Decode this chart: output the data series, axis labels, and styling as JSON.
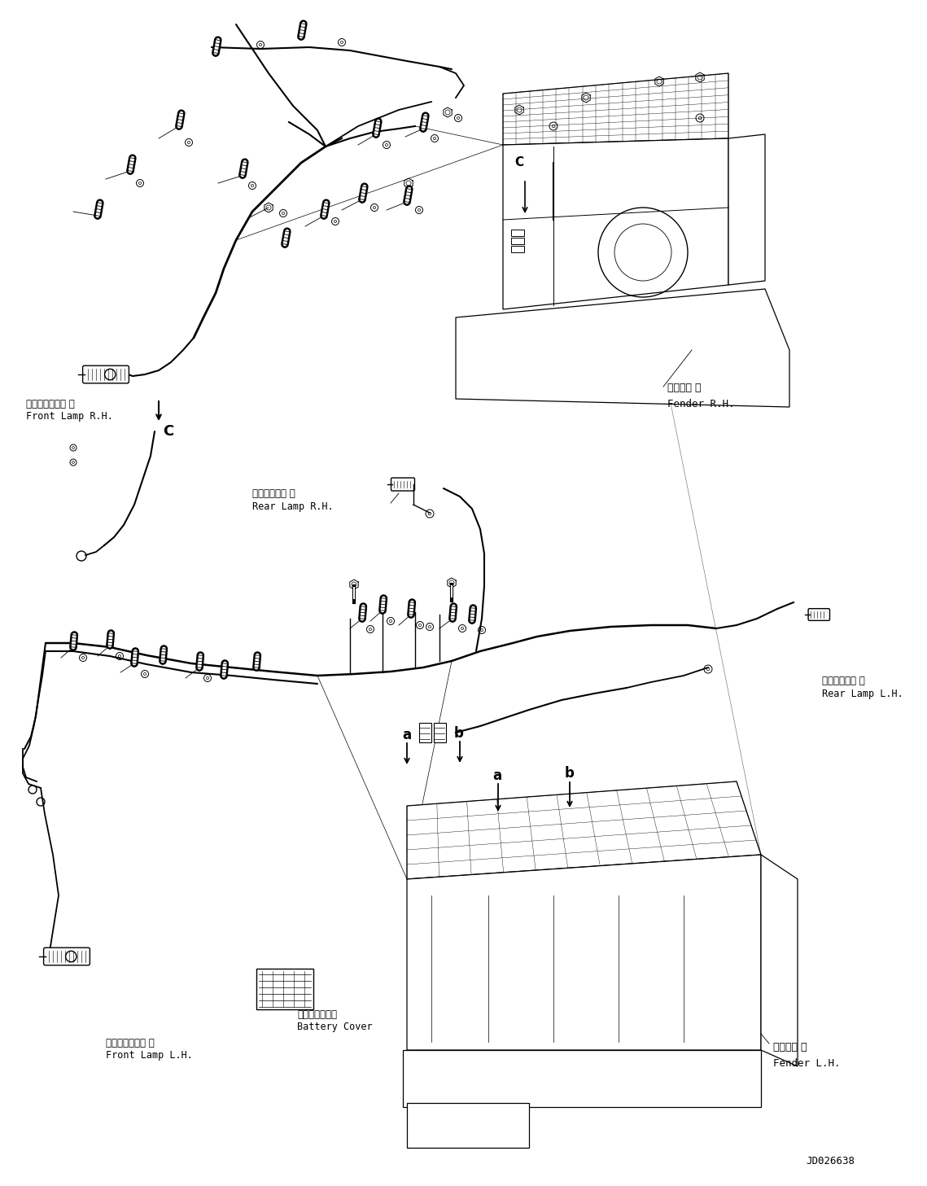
{
  "figure_width": 11.39,
  "figure_height": 14.57,
  "dpi": 100,
  "bg_color": "#ffffff",
  "lc": "#000000",
  "watermark": "JD026638",
  "labels": {
    "front_lamp_rh_jp": "フロントランプ 右",
    "front_lamp_rh_en": "Front Lamp R.H.",
    "rear_lamp_rh_jp": "リヤーランプ 右",
    "rear_lamp_rh_en": "Rear Lamp R.H.",
    "fender_rh_jp": "フェンダ 右",
    "fender_rh_en": "Fender R.H.",
    "front_lamp_lh_jp": "フロントランプ 左",
    "front_lamp_lh_en": "Front Lamp L.H.",
    "rear_lamp_lh_jp": "リヤーランプ 左",
    "rear_lamp_lh_en": "Rear Lamp L.H.",
    "fender_lh_jp": "フェンダ 左",
    "fender_lh_en": "Fender L.H.",
    "battery_cover_jp": "バッテリカバー",
    "battery_cover_en": "Battery Cover"
  }
}
